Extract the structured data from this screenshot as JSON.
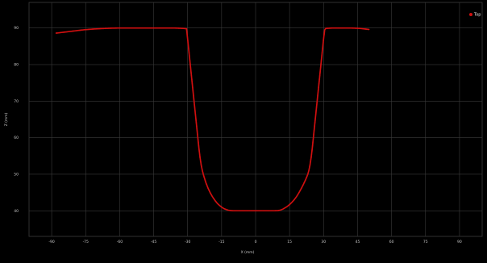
{
  "chart_data": {
    "type": "scatter",
    "xlabel": "X (mm)",
    "ylabel": "Z (mm)",
    "xlim": [
      -100,
      100
    ],
    "ylim": [
      33,
      97
    ],
    "x_ticks": [
      -90,
      -75,
      -60,
      -45,
      -30,
      -15,
      0,
      15,
      30,
      45,
      60,
      75,
      90
    ],
    "y_ticks": [
      40,
      50,
      60,
      70,
      80,
      90
    ],
    "grid": true,
    "legend_position": "top-right",
    "series": [
      {
        "name": "Top",
        "color": "#d01010",
        "x": [
          -88,
          -84,
          -80,
          -76,
          -72,
          -68,
          -64,
          -60,
          -56,
          -52,
          -48,
          -44,
          -40,
          -36,
          -32,
          -30.5,
          -30,
          -29.5,
          -29,
          -28.5,
          -28,
          -27.5,
          -27,
          -26.5,
          -26,
          -25.5,
          -25,
          -24.5,
          -24,
          -23.5,
          -23,
          -22,
          -21,
          -20,
          -19,
          -18,
          -17,
          -16,
          -15,
          -14,
          -13,
          -12,
          -11,
          -10,
          -8,
          -6,
          -4,
          -2,
          0,
          2,
          4,
          6,
          8,
          10,
          11,
          12,
          13,
          14,
          15,
          16,
          17,
          18,
          19,
          20,
          21,
          22,
          23,
          23.5,
          24,
          24.5,
          25,
          25.5,
          26,
          26.5,
          27,
          27.5,
          28,
          28.5,
          29,
          29.5,
          30,
          30.5,
          31,
          34,
          38,
          42,
          46,
          50
        ],
        "y": [
          88.6,
          88.9,
          89.2,
          89.5,
          89.7,
          89.85,
          89.95,
          90.0,
          90.0,
          90.0,
          90.0,
          90.0,
          90.0,
          90.0,
          89.9,
          89.8,
          87.0,
          84.0,
          81.0,
          78.0,
          75.0,
          72.0,
          69.0,
          66.0,
          63.0,
          60.0,
          57.0,
          54.5,
          52.5,
          51.0,
          49.8,
          47.8,
          46.2,
          44.9,
          43.8,
          42.9,
          42.1,
          41.5,
          41.0,
          40.6,
          40.35,
          40.15,
          40.05,
          40.0,
          40.0,
          40.0,
          40.0,
          40.0,
          40.0,
          40.0,
          40.0,
          40.0,
          40.0,
          40.05,
          40.2,
          40.45,
          40.8,
          41.2,
          41.7,
          42.3,
          43.0,
          43.8,
          44.8,
          45.9,
          47.1,
          48.4,
          49.9,
          51.0,
          52.5,
          54.5,
          57.0,
          60.0,
          63.0,
          66.0,
          69.0,
          72.0,
          75.0,
          78.0,
          81.0,
          84.0,
          87.0,
          89.5,
          89.9,
          90.0,
          90.0,
          90.0,
          89.9,
          89.6
        ]
      }
    ]
  }
}
